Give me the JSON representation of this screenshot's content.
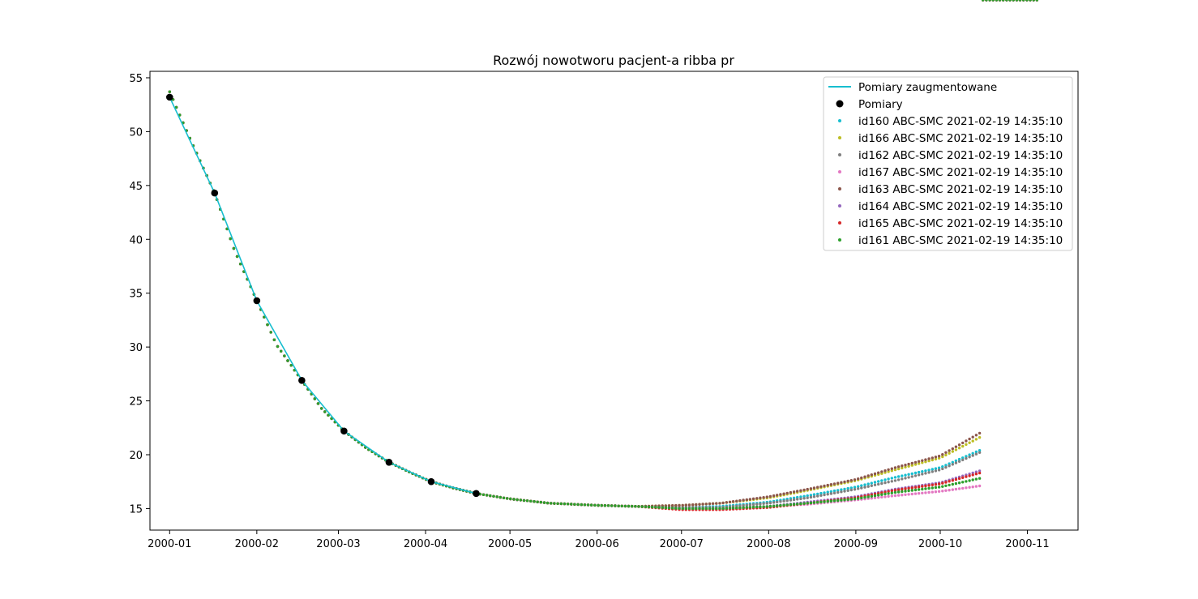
{
  "chart_data": {
    "type": "scatter",
    "title": "Rozwój nowotworu pacjent-a ribba pr",
    "xlabel": "",
    "ylabel": "",
    "x_axis_type": "date",
    "xlim": [
      "1999-12-25",
      "2000-11-19"
    ],
    "ylim": [
      13.0,
      55.6
    ],
    "x_ticks": [
      "2000-01",
      "2000-02",
      "2000-03",
      "2000-04",
      "2000-05",
      "2000-06",
      "2000-07",
      "2000-08",
      "2000-09",
      "2000-10",
      "2000-11"
    ],
    "y_ticks": [
      15,
      20,
      25,
      30,
      35,
      40,
      45,
      50,
      55
    ],
    "grid": false,
    "legend_position": "top-right",
    "measurements": {
      "name": "Pomiary",
      "color": "#000000",
      "x": [
        "2000-01-01",
        "2000-01-17",
        "2000-02-01",
        "2000-02-17",
        "2000-03-03",
        "2000-03-19",
        "2000-04-03",
        "2000-04-19"
      ],
      "y": [
        53.2,
        44.3,
        34.3,
        26.9,
        22.2,
        19.3,
        17.5,
        16.4
      ]
    },
    "augmented": {
      "name": "Pomiary zaugmentowane",
      "color": "#17becf",
      "x": [
        "2000-01-01",
        "2000-01-17",
        "2000-02-01",
        "2000-02-17",
        "2000-03-03",
        "2000-03-19",
        "2000-04-03",
        "2000-04-19"
      ],
      "y": [
        53.2,
        44.3,
        34.3,
        26.9,
        22.2,
        19.3,
        17.5,
        16.4
      ]
    },
    "model_x": [
      "2000-01-01",
      "2000-01-08",
      "2000-01-17",
      "2000-01-24",
      "2000-02-01",
      "2000-02-08",
      "2000-02-17",
      "2000-02-24",
      "2000-03-03",
      "2000-03-11",
      "2000-03-19",
      "2000-03-27",
      "2000-04-03",
      "2000-04-11",
      "2000-04-19",
      "2000-05-01",
      "2000-05-15",
      "2000-06-01",
      "2000-06-15",
      "2000-07-01",
      "2000-07-15",
      "2000-08-01",
      "2000-08-15",
      "2000-09-01",
      "2000-09-15",
      "2000-10-01",
      "2000-10-15",
      "2000-11-05"
    ],
    "model_common_y": [
      53.7,
      49.5,
      44.3,
      39.0,
      34.3,
      30.2,
      26.9,
      24.3,
      22.2,
      20.6,
      19.3,
      18.3,
      17.5,
      16.9,
      16.4,
      15.9,
      15.5,
      15.3,
      15.2
    ],
    "series": [
      {
        "name": "id160 ABC-SMC 2021-02-19 14:35:10",
        "color": "#17becf",
        "tail": [
          15.1,
          15.2,
          15.6,
          16.2,
          17.0,
          17.9,
          18.8,
          20.4
        ]
      },
      {
        "name": "id166 ABC-SMC 2021-02-19 14:35:10",
        "color": "#bcbd22",
        "tail": [
          15.3,
          15.5,
          16.0,
          16.7,
          17.6,
          18.6,
          19.7,
          21.6
        ]
      },
      {
        "name": "id162 ABC-SMC 2021-02-19 14:35:10",
        "color": "#7f7f7f",
        "tail": [
          15.1,
          15.1,
          15.5,
          16.0,
          16.8,
          17.6,
          18.6,
          20.2
        ]
      },
      {
        "name": "id167 ABC-SMC 2021-02-19 14:35:10",
        "color": "#e377c2",
        "tail": [
          15.0,
          15.0,
          15.2,
          15.4,
          15.8,
          16.2,
          16.6,
          17.1
        ]
      },
      {
        "name": "id163 ABC-SMC 2021-02-19 14:35:10",
        "color": "#8c564b",
        "tail": [
          15.3,
          15.5,
          16.1,
          16.8,
          17.7,
          18.8,
          19.9,
          22.0
        ]
      },
      {
        "name": "id164 ABC-SMC 2021-02-19 14:35:10",
        "color": "#9467bd",
        "tail": [
          15.0,
          15.0,
          15.2,
          15.6,
          16.1,
          16.8,
          17.4,
          18.5
        ]
      },
      {
        "name": "id165 ABC-SMC 2021-02-19 14:35:10",
        "color": "#d62728",
        "tail": [
          14.9,
          14.9,
          15.1,
          15.5,
          16.0,
          16.7,
          17.3,
          18.3
        ]
      },
      {
        "name": "id161 ABC-SMC 2021-02-19 14:35:10",
        "color": "#2ca02c",
        "tail": [
          15.0,
          15.0,
          15.2,
          15.5,
          15.9,
          16.5,
          17.0,
          17.8
        ]
      }
    ]
  }
}
